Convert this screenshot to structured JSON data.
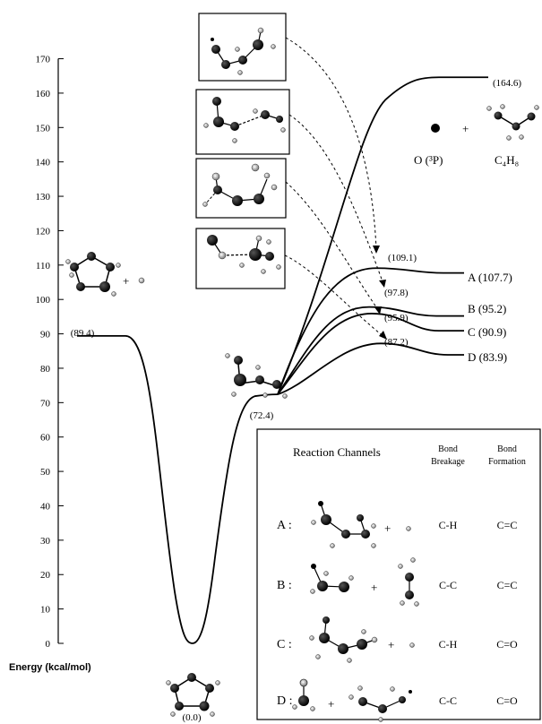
{
  "chart_data": {
    "type": "line",
    "ylabel": "Energy (kcal/mol)",
    "ylim": [
      0,
      170
    ],
    "yticks": [
      0,
      10,
      20,
      30,
      40,
      50,
      60,
      70,
      80,
      90,
      100,
      110,
      120,
      130,
      140,
      150,
      160,
      170
    ],
    "points": [
      {
        "id": "reactant-ring-radical",
        "value": 89.4,
        "label": "(89.4)"
      },
      {
        "id": "cyclic-minimum",
        "value": 0.0,
        "label": "(0.0)"
      },
      {
        "id": "open-chain-intermediate",
        "value": 72.4,
        "label": "(72.4)"
      },
      {
        "id": "ts-a",
        "value": 109.1,
        "label": "(109.1)"
      },
      {
        "id": "ts-b",
        "value": 97.8,
        "label": "(97.8)"
      },
      {
        "id": "ts-c",
        "value": 95.9,
        "label": "(95.9)"
      },
      {
        "id": "ts-d",
        "value": 87.2,
        "label": "(87.2)"
      },
      {
        "id": "o3p-c4h8",
        "value": 164.6,
        "label": "(164.6)"
      }
    ],
    "channels": [
      {
        "name": "A",
        "ts": 109.1,
        "product": 107.7,
        "label": "A (107.7)"
      },
      {
        "name": "B",
        "ts": 97.8,
        "product": 95.2,
        "label": "B (95.2)"
      },
      {
        "name": "C",
        "ts": 95.9,
        "product": 90.9,
        "label": "C (90.9)"
      },
      {
        "name": "D",
        "ts": 87.2,
        "product": 83.9,
        "label": "D (83.9)"
      }
    ]
  },
  "labels": {
    "o3p": "O (³P)",
    "plus": "+",
    "c4h8": "C₄H₈"
  },
  "table": {
    "title": "Reaction Channels",
    "col1": [
      "Bond",
      "Breakage"
    ],
    "col2": [
      "Bond",
      "Formation"
    ],
    "rows": [
      {
        "name": "A :",
        "breakage": "C-H",
        "formation": "C=C"
      },
      {
        "name": "B :",
        "breakage": "C-C",
        "formation": "C=C"
      },
      {
        "name": "C :",
        "breakage": "C-H",
        "formation": "C=O"
      },
      {
        "name": "D :",
        "breakage": "C-C",
        "formation": "C=O"
      }
    ]
  }
}
